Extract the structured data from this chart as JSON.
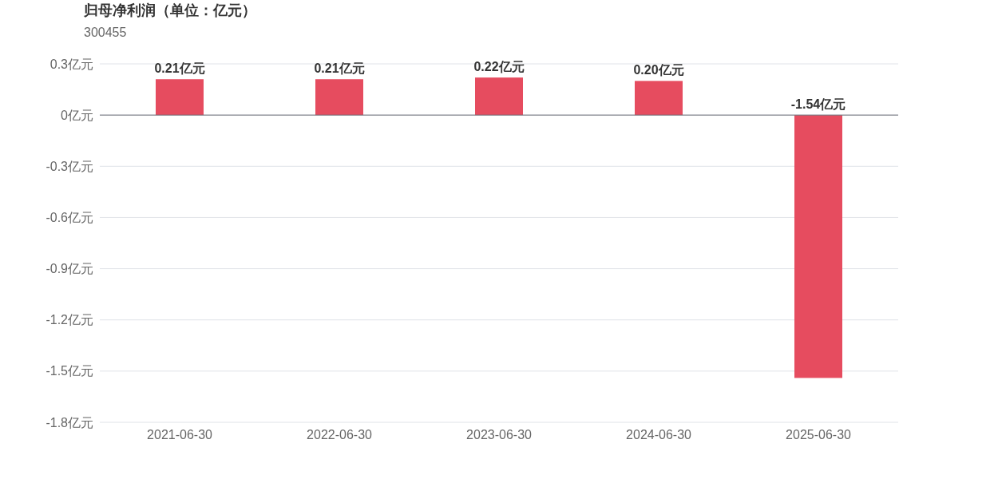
{
  "chart_data": {
    "type": "bar",
    "title": "归母净利润（单位：亿元）",
    "subtitle": "300455",
    "categories": [
      "2021-06-30",
      "2022-06-30",
      "2023-06-30",
      "2024-06-30",
      "2025-06-30"
    ],
    "values": [
      0.21,
      0.21,
      0.22,
      0.2,
      -1.54
    ],
    "color": "#e64c5f",
    "value_labels": [
      "0.21亿元",
      "0.21亿元",
      "0.22亿元",
      "0.20亿元",
      "-1.54亿元"
    ],
    "ylim": [
      -1.8,
      0.3
    ],
    "yticks": [
      {
        "value": 0.3,
        "label": "0.3亿元"
      },
      {
        "value": 0,
        "label": "0亿元"
      },
      {
        "value": -0.3,
        "label": "-0.3亿元"
      },
      {
        "value": -0.6,
        "label": "-0.6亿元"
      },
      {
        "value": -0.9,
        "label": "-0.9亿元"
      },
      {
        "value": -1.2,
        "label": "-1.2亿元"
      },
      {
        "value": -1.5,
        "label": "-1.5亿元"
      },
      {
        "value": -1.8,
        "label": "-1.8亿元"
      }
    ],
    "grid": "y"
  }
}
